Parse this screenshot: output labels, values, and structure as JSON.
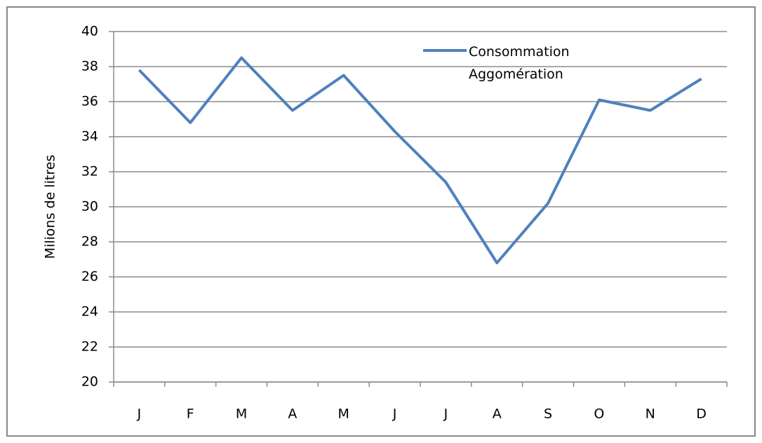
{
  "chart_data": {
    "type": "line",
    "y_label": "Milions de litres",
    "categories": [
      "J",
      "F",
      "M",
      "A",
      "M",
      "J",
      "J",
      "A",
      "S",
      "O",
      "N",
      "D"
    ],
    "series": [
      {
        "name": "Consommation Aggomération",
        "color": "#4f81bd",
        "values": [
          37.8,
          34.8,
          38.5,
          35.5,
          37.5,
          34.3,
          31.4,
          26.8,
          30.2,
          36.1,
          35.5,
          37.3
        ]
      }
    ],
    "ylim": [
      20,
      40
    ],
    "yticks": [
      20,
      22,
      24,
      26,
      28,
      30,
      32,
      34,
      36,
      38,
      40
    ],
    "grid": true,
    "legend": "top-right"
  }
}
